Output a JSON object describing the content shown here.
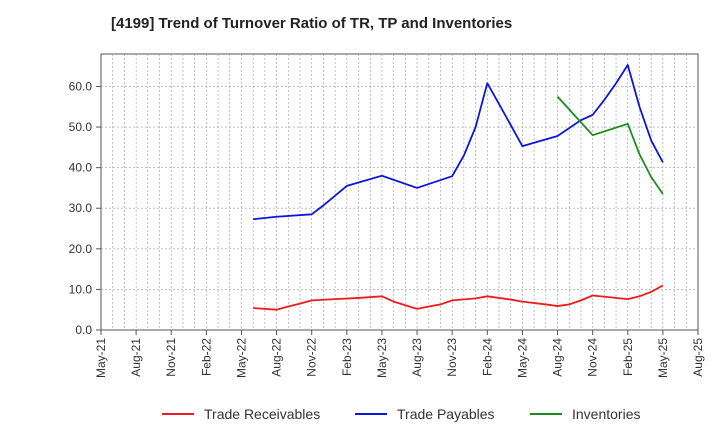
{
  "chart_data": {
    "type": "line",
    "title": "[4199]  Trend of Turnover Ratio of TR, TP and Inventories",
    "xlabel": "",
    "ylabel": "",
    "x_ticks": [
      "May-21",
      "Aug-21",
      "Nov-21",
      "Feb-22",
      "May-22",
      "Aug-22",
      "Nov-22",
      "Feb-23",
      "May-23",
      "Aug-23",
      "Nov-23",
      "Feb-24",
      "May-24",
      "Aug-24",
      "Nov-24",
      "Feb-25",
      "May-25",
      "Aug-25"
    ],
    "y_ticks": [
      "0.0",
      "10.0",
      "20.0",
      "30.0",
      "40.0",
      "50.0",
      "60.0"
    ],
    "ylim": [
      0,
      68
    ],
    "grid": true,
    "legend_position": "bottom",
    "series": [
      {
        "name": "Trade Receivables",
        "color": "#ee1c1c",
        "points": [
          [
            "Jun-22",
            5.4
          ],
          [
            "Aug-22",
            5.0
          ],
          [
            "Sep-22",
            5.8
          ],
          [
            "Oct-22",
            6.5
          ],
          [
            "Nov-22",
            7.3
          ],
          [
            "Jan-23",
            7.6
          ],
          [
            "Mar-23",
            7.9
          ],
          [
            "May-23",
            8.3
          ],
          [
            "Jun-23",
            7.0
          ],
          [
            "Aug-23",
            5.2
          ],
          [
            "Sep-23",
            5.8
          ],
          [
            "Oct-23",
            6.3
          ],
          [
            "Nov-23",
            7.3
          ],
          [
            "Jan-24",
            7.8
          ],
          [
            "Feb-24",
            8.3
          ],
          [
            "Apr-24",
            7.5
          ],
          [
            "May-24",
            7.0
          ],
          [
            "Jul-24",
            6.3
          ],
          [
            "Aug-24",
            5.9
          ],
          [
            "Sep-24",
            6.3
          ],
          [
            "Oct-24",
            7.3
          ],
          [
            "Nov-24",
            8.5
          ],
          [
            "Feb-25",
            7.6
          ],
          [
            "Mar-25",
            8.3
          ],
          [
            "Apr-25",
            9.4
          ],
          [
            "May-25",
            11.0
          ]
        ]
      },
      {
        "name": "Trade Payables",
        "color": "#0b16d8",
        "points": [
          [
            "Jun-22",
            27.3
          ],
          [
            "Aug-22",
            27.9
          ],
          [
            "Nov-22",
            28.5
          ],
          [
            "Dec-22",
            30.7
          ],
          [
            "Feb-23",
            35.5
          ],
          [
            "May-23",
            38.0
          ],
          [
            "Aug-23",
            35.0
          ],
          [
            "Nov-23",
            37.9
          ],
          [
            "Dec-23",
            43.0
          ],
          [
            "Jan-24",
            50.0
          ],
          [
            "Feb-24",
            60.8
          ],
          [
            "Mar-24",
            55.7
          ],
          [
            "May-24",
            45.3
          ],
          [
            "Aug-24",
            47.8
          ],
          [
            "Oct-24",
            51.7
          ],
          [
            "Nov-24",
            53.0
          ],
          [
            "Dec-24",
            56.7
          ],
          [
            "Jan-25",
            60.8
          ],
          [
            "Feb-25",
            65.3
          ],
          [
            "Mar-25",
            55.0
          ],
          [
            "Apr-25",
            46.7
          ],
          [
            "May-25",
            41.3
          ]
        ]
      },
      {
        "name": "Inventories",
        "color": "#1c8c1c",
        "points": [
          [
            "Aug-24",
            57.5
          ],
          [
            "Nov-24",
            48.0
          ],
          [
            "Feb-25",
            50.8
          ],
          [
            "Mar-25",
            43.3
          ],
          [
            "Apr-25",
            37.7
          ],
          [
            "May-25",
            33.5
          ]
        ]
      }
    ]
  }
}
